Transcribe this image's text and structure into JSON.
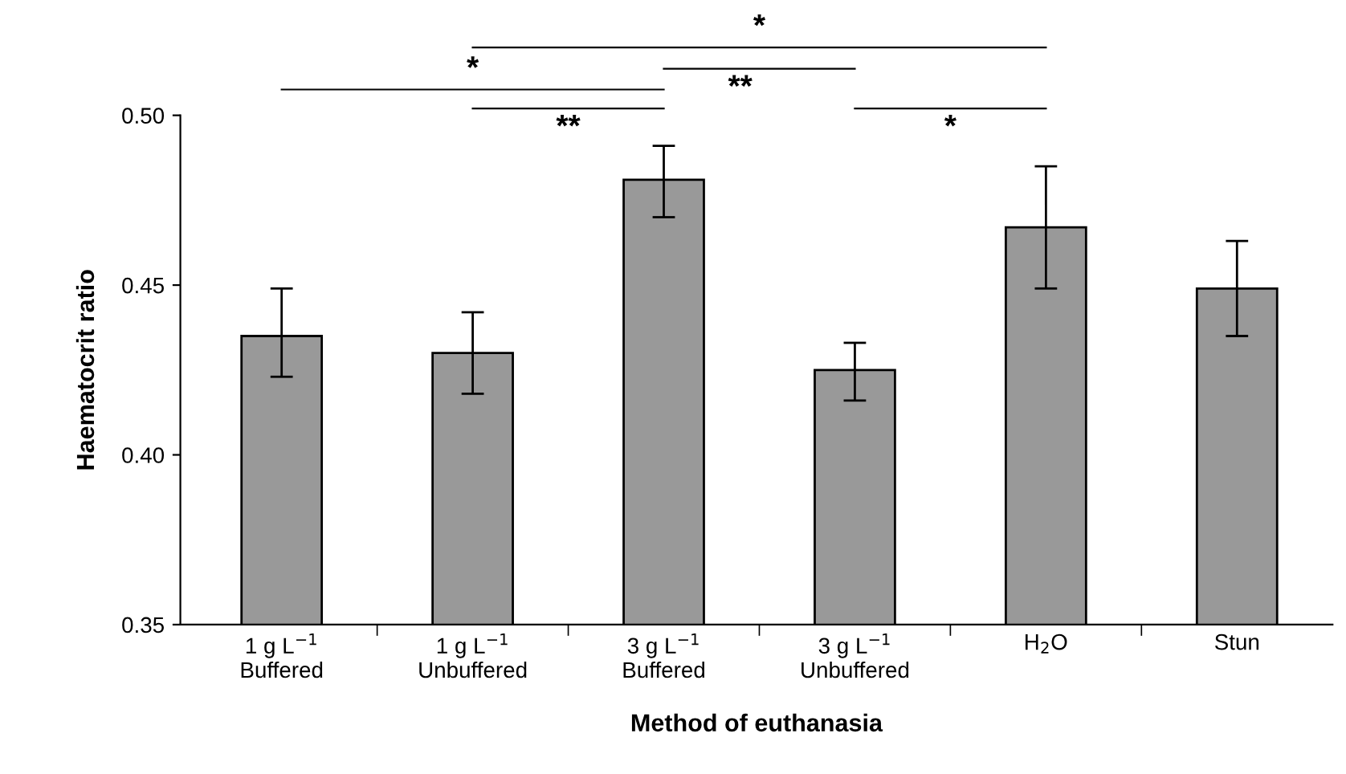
{
  "chart_data": {
    "type": "bar",
    "xlabel": "Method of euthanasia",
    "ylabel": "Haematocrit ratio",
    "categories": [
      "1 g L$^{−1}$\nBuffered",
      "1 g L$^{−1}$\nUnbuffered",
      "3 g L$^{−1}$\nBuffered",
      "3 g L$^{−1}$\nUnbuffered",
      "H$_{2}$O",
      "Stun"
    ],
    "values": [
      0.435,
      0.43,
      0.481,
      0.425,
      0.467,
      0.449
    ],
    "errors": [
      [
        0.423,
        0.449
      ],
      [
        0.418,
        0.442
      ],
      [
        0.47,
        0.491
      ],
      [
        0.416,
        0.433
      ],
      [
        0.449,
        0.485
      ],
      [
        0.435,
        0.463
      ]
    ],
    "color": "#999999",
    "ylim": [
      0.35,
      0.5
    ],
    "yticks": [
      {
        "value": 0.35,
        "label": "0.35"
      },
      {
        "value": 0.4,
        "label": "0.40"
      },
      {
        "value": 0.45,
        "label": "0.45"
      },
      {
        "value": 0.5,
        "label": "0.50"
      }
    ],
    "grid": false,
    "annotations": [
      "*",
      "*",
      "**",
      "**",
      "*"
    ]
  }
}
